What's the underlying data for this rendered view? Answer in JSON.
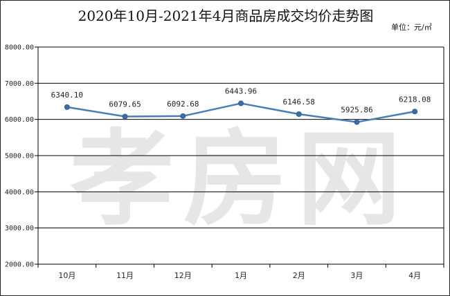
{
  "title": "2020年10月-2021年4月商品房成交均价走势图",
  "unit": "单位：元/㎡",
  "watermark": "孝房网",
  "colors": {
    "line": "#4a7db5",
    "marker": "#3a6ea5",
    "grid": "#000000",
    "watermark": "#e6e6e6"
  },
  "chart_data": {
    "type": "line",
    "title": "2020年10月-2021年4月商品房成交均价走势图",
    "categories": [
      "10月",
      "11月",
      "12月",
      "1月",
      "2月",
      "3月",
      "4月"
    ],
    "values": [
      6340.1,
      6079.65,
      6092.68,
      6443.96,
      6146.58,
      5925.86,
      6218.08
    ],
    "value_labels": [
      "6340.10",
      "6079.65",
      "6092.68",
      "6443.96",
      "6146.58",
      "5925.86",
      "6218.08"
    ],
    "y_ticks": [
      "8000.00",
      "7000.00",
      "6000.00",
      "5000.00",
      "4000.00",
      "3000.00",
      "2000.00"
    ],
    "ylim": [
      2000,
      8000
    ],
    "grid": true,
    "legend": "none"
  }
}
